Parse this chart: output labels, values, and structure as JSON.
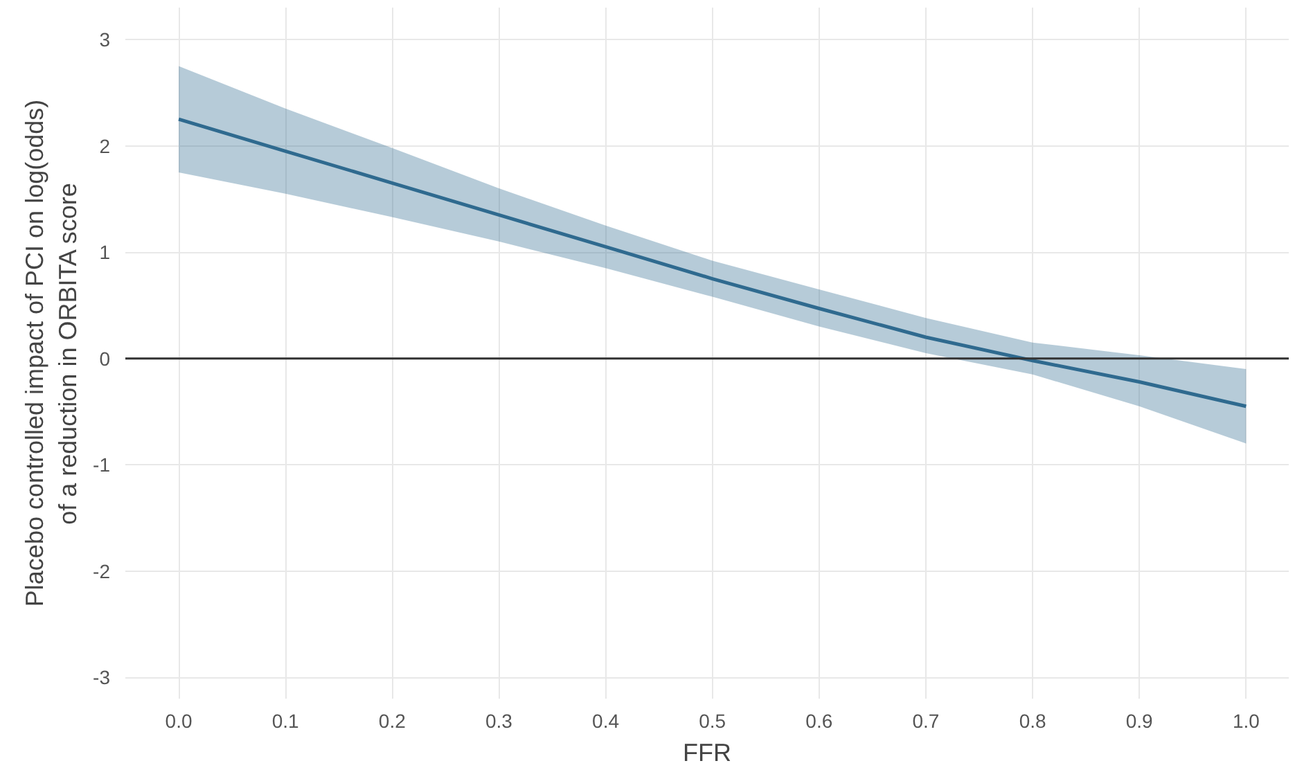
{
  "chart_data": {
    "type": "line",
    "xlabel": "FFR",
    "ylabel": "Placebo controlled impact of PCI on log(odds)\nof a reduction in ORBITA score",
    "x": [
      0.0,
      0.1,
      0.2,
      0.3,
      0.4,
      0.5,
      0.6,
      0.7,
      0.8,
      0.9,
      1.0
    ],
    "series": [
      {
        "color": "#2f6a8f",
        "values": [
          2.25,
          1.95,
          1.65,
          1.35,
          1.05,
          0.75,
          0.47,
          0.2,
          -0.02,
          -0.22,
          -0.45
        ],
        "lower": [
          1.75,
          1.55,
          1.33,
          1.1,
          0.85,
          0.58,
          0.3,
          0.05,
          -0.15,
          -0.45,
          -0.8
        ],
        "upper": [
          2.75,
          2.35,
          1.98,
          1.6,
          1.25,
          0.92,
          0.65,
          0.38,
          0.15,
          0.03,
          -0.1
        ]
      }
    ],
    "xlim": [
      -0.05,
      1.04
    ],
    "ylim": [
      -3.2,
      3.3
    ],
    "xticks": [
      {
        "value": 0,
        "label": "0.0"
      },
      0.1,
      0.2,
      0.3,
      0.4,
      0.5,
      0.6,
      0.7,
      0.8,
      0.9,
      {
        "value": 1,
        "label": "1.0"
      }
    ],
    "yticks": [
      -3,
      -2,
      -1,
      0,
      1,
      2,
      3
    ],
    "ref_lines": [
      {
        "axis": "y",
        "value": 0,
        "color": "#333333"
      }
    ],
    "grid": true
  }
}
